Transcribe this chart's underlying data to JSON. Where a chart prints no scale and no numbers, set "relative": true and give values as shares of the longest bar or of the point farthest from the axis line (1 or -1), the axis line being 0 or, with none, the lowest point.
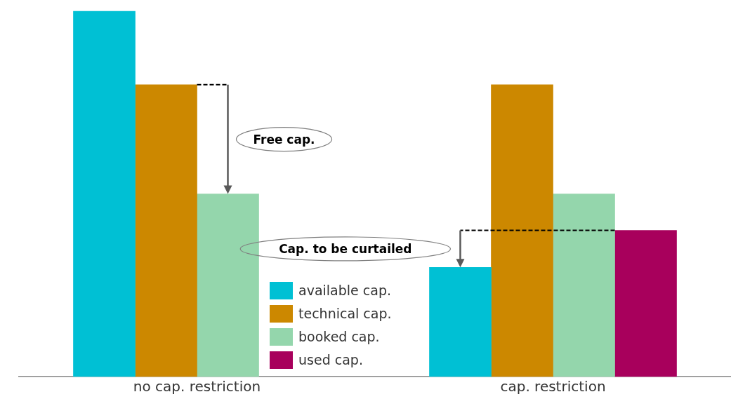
{
  "chart_data": {
    "type": "bar",
    "relative": true,
    "categories": [
      "no cap. restriction",
      "cap. restriction"
    ],
    "series": [
      {
        "name": "available cap.",
        "color": "#00c0d4",
        "values": [
          1,
          0.299
        ]
      },
      {
        "name": "technical cap.",
        "color": "#cc8800",
        "values": [
          0.799,
          0.799
        ]
      },
      {
        "name": "booked cap.",
        "color": "#94d6ac",
        "values": [
          0.5,
          0.5
        ]
      },
      {
        "name": "used cap.",
        "color": "#a8005c",
        "values": [
          null,
          0.4
        ]
      }
    ],
    "annotations": [
      "Free cap.",
      "Cap. to be curtailed"
    ],
    "legend": "bottom"
  }
}
